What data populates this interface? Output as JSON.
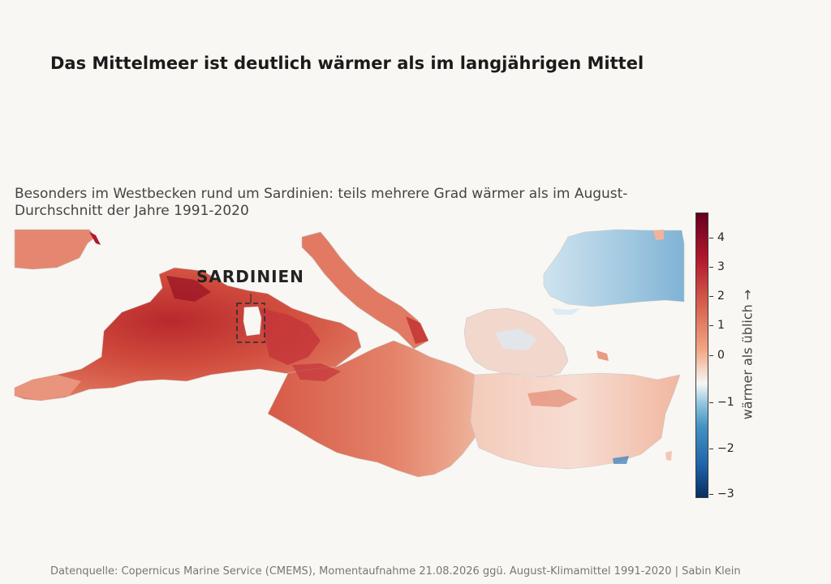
{
  "title": "Das Mittelmeer ist deutlich wärmer als im langjährigen Mittel",
  "subtitle": "Besonders im Westbecken rund um Sardinien: teils mehrere Grad wärmer als im August-Durchschnitt der Jahre 1991-2020",
  "annotation": {
    "label": "SARDINIEN"
  },
  "colorbar": {
    "label": "wärmer als üblich  →",
    "ticks": [
      "4",
      "3",
      "2",
      "1",
      "0",
      "−1",
      "−2",
      "−3"
    ],
    "range": [
      -3.1,
      4.7
    ],
    "colors": [
      "#053061",
      "#2166ac",
      "#4393c3",
      "#92c5de",
      "#f7f7f7",
      "#f4a582",
      "#d6604d",
      "#b2182b",
      "#67001f"
    ]
  },
  "footer": "Datenquelle: Copernicus Marine Service (CMEMS), Momentaufnahme 21.08.2026 ggü. August-Klimamittel 1991-2020  |  Sabin Klein"
}
